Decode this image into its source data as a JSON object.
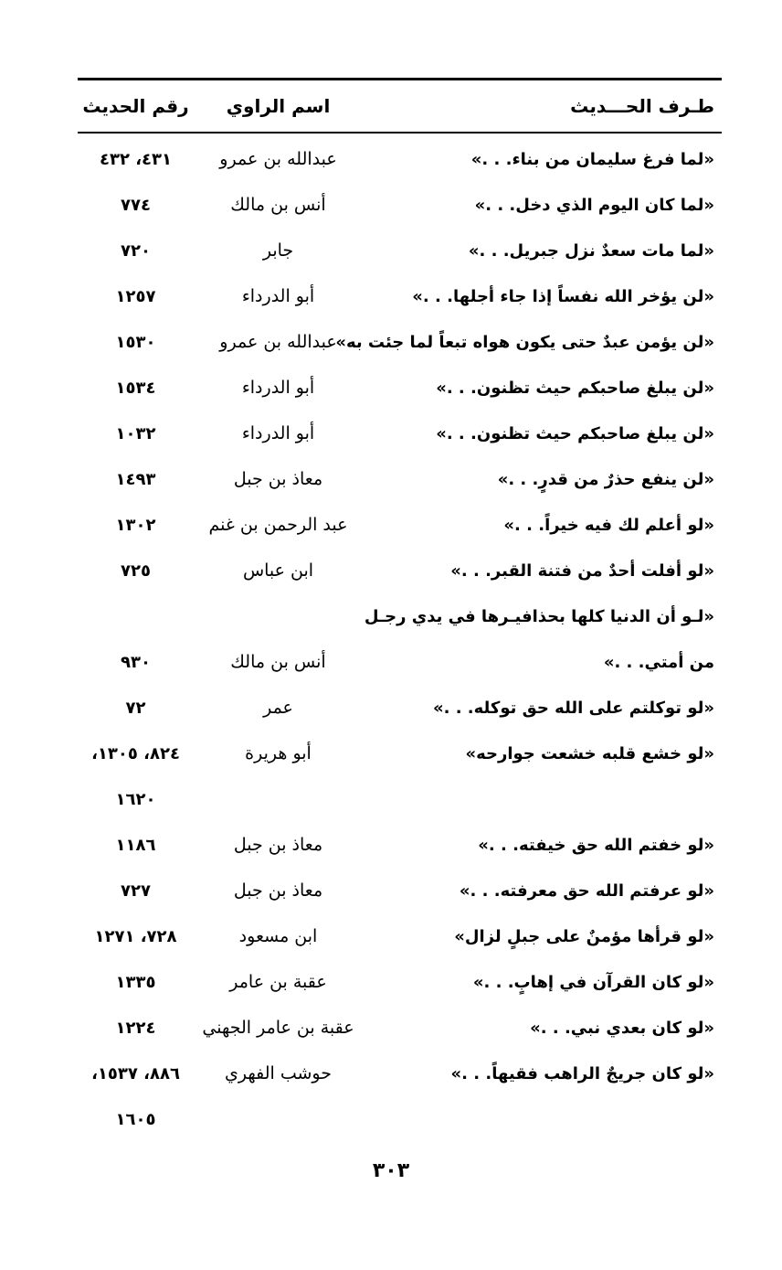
{
  "header": {
    "text": "طـرف الحـــديث",
    "narrator": "اسم الراوي",
    "number": "رقم الحديث"
  },
  "rows": [
    {
      "lines": [
        {
          "text": "«لما فرغ سليمان من بناء. . .»",
          "narrator": "عبدالله بن عمرو",
          "numbers": "٤٣١، ٤٣٢"
        }
      ]
    },
    {
      "lines": [
        {
          "text": "«لما كان اليوم الذي دخل. . .»",
          "narrator": "أنس بن مالك",
          "numbers": "٧٧٤"
        }
      ]
    },
    {
      "lines": [
        {
          "text": "«لما مات سعدٌ نزل جبريل. . .»",
          "narrator": "جابر",
          "numbers": "٧٢٠"
        }
      ]
    },
    {
      "lines": [
        {
          "text": "«لن يؤخر الله نفساً إذا جاء أجلها. . .»",
          "narrator": "أبو الدرداء",
          "numbers": "١٢٥٧"
        }
      ]
    },
    {
      "lines": [
        {
          "text": "«لن يؤمن عبدٌ حتى يكون هواه تبعاً لما جئت به»",
          "narrator": "عبدالله بن عمرو",
          "numbers": "١٥٣٠"
        }
      ]
    },
    {
      "lines": [
        {
          "text": "«لن يبلغ صاحبكم حيث تظنون. . .»",
          "narrator": "أبو الدرداء",
          "numbers": "١٥٣٤"
        }
      ]
    },
    {
      "lines": [
        {
          "text": "«لن يبلغ صاحبكم حيث تظنون. . .»",
          "narrator": "أبو الدرداء",
          "numbers": "١٠٣٢"
        }
      ]
    },
    {
      "lines": [
        {
          "text": "«لن ينفع حذرٌ من قدرٍ. . .»",
          "narrator": "معاذ بن جبل",
          "numbers": "١٤٩٣"
        }
      ]
    },
    {
      "lines": [
        {
          "text": "«لو أعلم لك فيه خيراً. . .»",
          "narrator": "عبد الرحمن بن غنم",
          "numbers": "١٣٠٢"
        }
      ]
    },
    {
      "lines": [
        {
          "text": "«لو أفلت أحدٌ من فتنة القبر. . .»",
          "narrator": "ابن عباس",
          "numbers": "٧٢٥"
        }
      ]
    },
    {
      "lines": [
        {
          "text": "«لـو أن الدنيا كلها بحذافيـرها في يدي رجـل",
          "narrator": "",
          "numbers": ""
        },
        {
          "text": "من أمتي. . .»",
          "narrator": "أنس بن مالك",
          "numbers": "٩٣٠"
        }
      ]
    },
    {
      "lines": [
        {
          "text": "«لو توكلتم على الله حق توكله. . .»",
          "narrator": "عمر",
          "numbers": "٧٢"
        }
      ]
    },
    {
      "lines": [
        {
          "text": "«لو خشع قلبه خشعت جوارحه»",
          "narrator": "أبو هريرة",
          "numbers": "٨٢٤، ١٣٠٥،"
        },
        {
          "text": "",
          "narrator": "",
          "numbers": "١٦٢٠"
        }
      ]
    },
    {
      "lines": [
        {
          "text": "«لو خفتم الله حق خيفته. . .»",
          "narrator": "معاذ بن جبل",
          "numbers": "١١٨٦"
        }
      ]
    },
    {
      "lines": [
        {
          "text": "«لو عرفتم الله حق معرفته. . .»",
          "narrator": "معاذ بن جبل",
          "numbers": "٧٢٧"
        }
      ]
    },
    {
      "lines": [
        {
          "text": "«لو قرأها مؤمنٌ على جبلٍ لزال»",
          "narrator": "ابن مسعود",
          "numbers": "٧٢٨، ١٢٧١"
        }
      ]
    },
    {
      "lines": [
        {
          "text": "«لو كان القرآن في إهابٍ. . .»",
          "narrator": "عقبة بن عامر",
          "numbers": "١٣٣٥"
        }
      ]
    },
    {
      "lines": [
        {
          "text": "«لو كان بعدي نبي. . .»",
          "narrator": "عقبة بن عامر الجهني",
          "numbers": "١٢٢٤"
        }
      ]
    },
    {
      "lines": [
        {
          "text": "«لو كان جريجٌ الراهب فقيهاً. . .»",
          "narrator": "حوشب الفهري",
          "numbers": "٨٨٦، ١٥٣٧،"
        },
        {
          "text": "",
          "narrator": "",
          "numbers": "١٦٠٥"
        }
      ]
    }
  ],
  "page_number": "٣٠٣"
}
